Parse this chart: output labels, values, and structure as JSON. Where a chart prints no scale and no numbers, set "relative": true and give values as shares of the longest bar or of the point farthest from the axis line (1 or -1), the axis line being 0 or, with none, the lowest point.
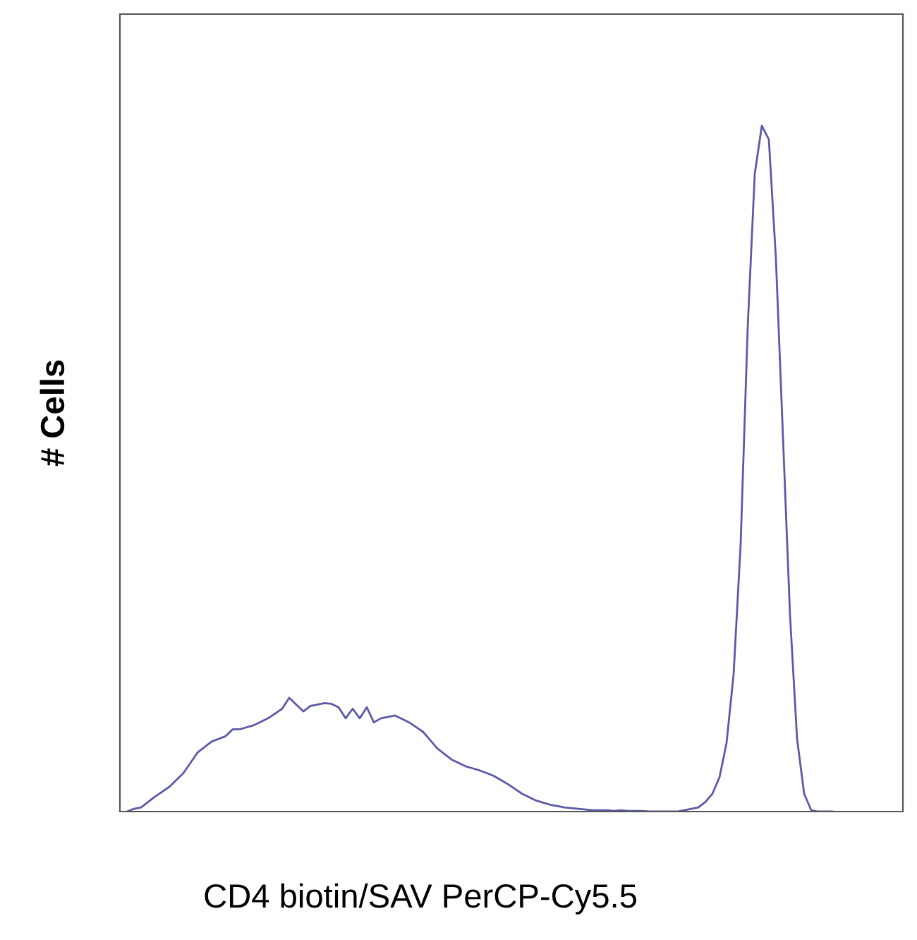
{
  "chart_data": {
    "type": "line",
    "relative": true,
    "xlabel": "CD4 biotin/SAV PerCP-Cy5.5",
    "ylabel": "# Cells",
    "legend": false,
    "marker": "none",
    "line_style": "solid",
    "categories": [
      null,
      null,
      null,
      null,
      null,
      null,
      null,
      null,
      null,
      null,
      null,
      null,
      null,
      null,
      null,
      null,
      null,
      null,
      null,
      null,
      null,
      null,
      null,
      null,
      null,
      null,
      null,
      null,
      null,
      null,
      null,
      null,
      null,
      null,
      null,
      null,
      null,
      null,
      null,
      null,
      null,
      null,
      null,
      null,
      null,
      null,
      null,
      null,
      null,
      null,
      null,
      null,
      null,
      null,
      null,
      null,
      null,
      null,
      null,
      null,
      null,
      null,
      null,
      null,
      null,
      null,
      null,
      null,
      null,
      null,
      null,
      null,
      null,
      null,
      null,
      null,
      null,
      null,
      null,
      null,
      null,
      null,
      null,
      null,
      null,
      null,
      null,
      null,
      null,
      null,
      null,
      null,
      null,
      null,
      null,
      null,
      null,
      null,
      null,
      null,
      null
    ],
    "series": [
      {
        "color": "#5a5aa8",
        "values": [
          0,
          0.004,
          0.006,
          0.014,
          0.022,
          0.029,
          0.036,
          0.046,
          0.056,
          0.071,
          0.086,
          0.094,
          0.102,
          0.106,
          0.11,
          0.12,
          0.12,
          0.123,
          0.126,
          0.131,
          0.136,
          0.143,
          0.15,
          0.166,
          0.156,
          0.146,
          0.154,
          0.156,
          0.158,
          0.157,
          0.152,
          0.136,
          0.15,
          0.136,
          0.152,
          0.13,
          0.136,
          0.138,
          0.14,
          0.135,
          0.13,
          0.123,
          0.116,
          0.104,
          0.092,
          0.084,
          0.076,
          0.071,
          0.066,
          0.063,
          0.06,
          0.056,
          0.052,
          0.046,
          0.04,
          0.033,
          0.026,
          0.021,
          0.016,
          0.013,
          0.01,
          0.008,
          0.006,
          0.005,
          0.004,
          0.003,
          0.002,
          0.002,
          0.002,
          0.001,
          0.002,
          0.001,
          0.001,
          0.001,
          0,
          0,
          0,
          0,
          0,
          0.002,
          0.004,
          0.006,
          0.014,
          0.026,
          0.05,
          0.1,
          0.2,
          0.39,
          0.706,
          0.93,
          1,
          0.98,
          0.806,
          0.546,
          0.286,
          0.106,
          0.026,
          0.002,
          0,
          0,
          0
        ]
      }
    ]
  }
}
